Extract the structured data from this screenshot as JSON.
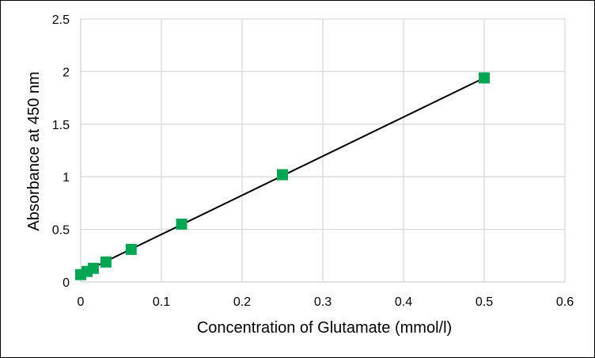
{
  "chart_data": {
    "type": "scatter",
    "title": "",
    "xlabel": "Concentration of Glutamate (mmol/l)",
    "ylabel": "Absorbance at 450 nm",
    "xlim": [
      0,
      0.6
    ],
    "ylim": [
      0,
      2.5
    ],
    "x_ticks": [
      "0",
      "0.1",
      "0.2",
      "0.3",
      "0.4",
      "0.5",
      "0.6"
    ],
    "y_ticks": [
      "0",
      "0.5",
      "1",
      "1.5",
      "2",
      "2.5"
    ],
    "x_tick_values": [
      0,
      0.1,
      0.2,
      0.3,
      0.4,
      0.5,
      0.6
    ],
    "y_tick_values": [
      0,
      0.5,
      1,
      1.5,
      2,
      2.5
    ],
    "grid": true,
    "legend": "none",
    "series": [
      {
        "marker": "square",
        "color": "#00A651",
        "x": [
          0,
          0.0078,
          0.0156,
          0.03125,
          0.0625,
          0.125,
          0.25,
          0.5
        ],
        "y": [
          0.07,
          0.1,
          0.13,
          0.19,
          0.31,
          0.55,
          1.02,
          1.94
        ]
      }
    ],
    "trendline": {
      "type": "linear",
      "color": "#000000",
      "x": [
        0,
        0.5
      ],
      "y": [
        0.08,
        1.94
      ]
    }
  }
}
